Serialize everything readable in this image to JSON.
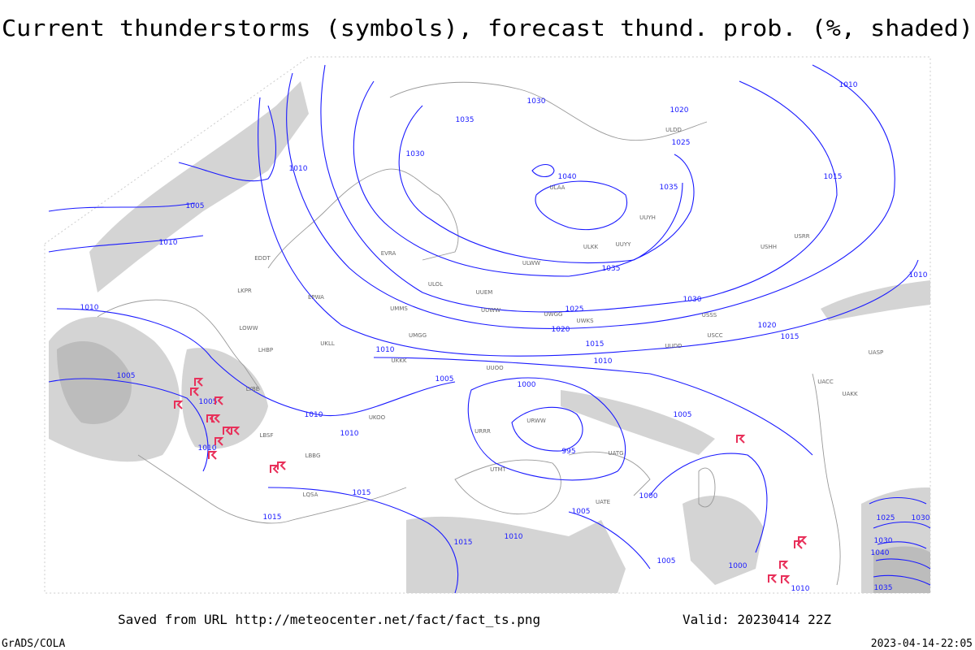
{
  "title": "Current thunderstorms (symbols), forecast thund. prob. (%, shaded)",
  "footer": {
    "saved": "Saved from URL http://meteocenter.net/fact/fact_ts.png",
    "valid": "Valid: 20230414 22Z",
    "credit": "GrADS/COLA",
    "timestamp": "2023-04-14-22:05"
  },
  "isobar_labels": [
    "1030",
    "1035",
    "1030",
    "1040",
    "1035",
    "1020",
    "1025",
    "1015",
    "1010",
    "1005",
    "1010",
    "1010",
    "1005",
    "1010",
    "1005",
    "1000",
    "995",
    "1005",
    "1000",
    "1005",
    "1005",
    "1000",
    "1010",
    "1015",
    "1015",
    "1015",
    "1010",
    "1010",
    "1010",
    "1010",
    "1025",
    "1020",
    "1015",
    "1010",
    "1030",
    "1035",
    "1020",
    "1015",
    "1010",
    "1010",
    "1005",
    "1025",
    "1030",
    "1030",
    "1040",
    "1035"
  ],
  "stations": [
    "ULAA",
    "UUYH",
    "ULKK",
    "UUYY",
    "ULWW",
    "UUEM",
    "UUWW",
    "UWGG",
    "UWKS",
    "UMMS",
    "UMGG",
    "UKKK",
    "UKLL",
    "EPWA",
    "EVRA",
    "ULOL",
    "UUOO",
    "URWW",
    "URRR",
    "UATG",
    "UATE",
    "UTMT",
    "USHH",
    "USRR",
    "USSS",
    "USCC",
    "UACC",
    "UAKK",
    "UASP",
    "LBSF",
    "LBBG",
    "LYBE",
    "LQSA",
    "EDDT",
    "LKPR",
    "LOWW",
    "LHBP",
    "UKOO",
    "UUDD",
    "ULDD"
  ]
}
